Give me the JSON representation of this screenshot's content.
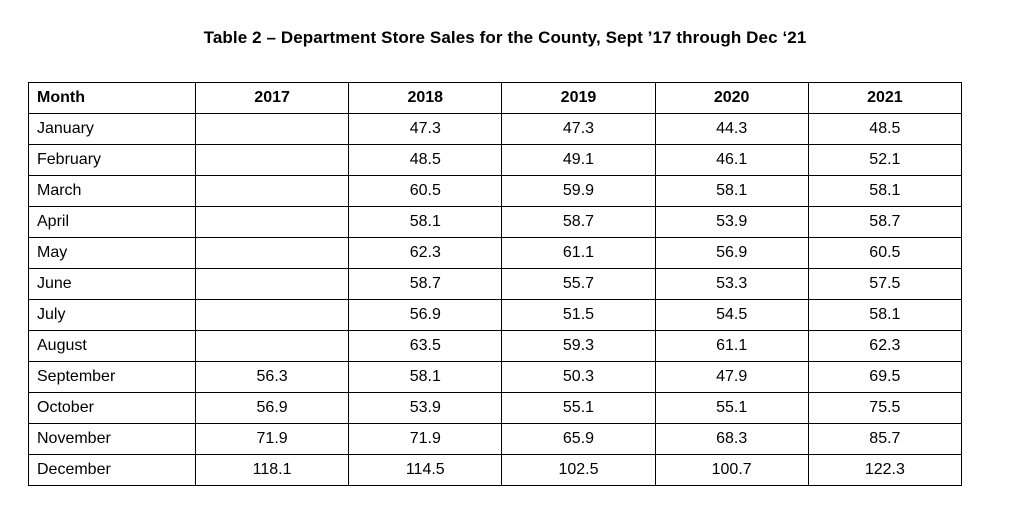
{
  "title": "Table 2 – Department Store Sales for the County, Sept ’17 through Dec ‘21",
  "chart_data": {
    "type": "table",
    "title": "Table 2 – Department Store Sales for the County, Sept ’17 through Dec ‘21",
    "columns": [
      "Month",
      "2017",
      "2018",
      "2019",
      "2020",
      "2021"
    ],
    "rows": [
      [
        "January",
        "",
        "47.3",
        "47.3",
        "44.3",
        "48.5"
      ],
      [
        "February",
        "",
        "48.5",
        "49.1",
        "46.1",
        "52.1"
      ],
      [
        "March",
        "",
        "60.5",
        "59.9",
        "58.1",
        "58.1"
      ],
      [
        "April",
        "",
        "58.1",
        "58.7",
        "53.9",
        "58.7"
      ],
      [
        "May",
        "",
        "62.3",
        "61.1",
        "56.9",
        "60.5"
      ],
      [
        "June",
        "",
        "58.7",
        "55.7",
        "53.3",
        "57.5"
      ],
      [
        "July",
        "",
        "56.9",
        "51.5",
        "54.5",
        "58.1"
      ],
      [
        "August",
        "",
        "63.5",
        "59.3",
        "61.1",
        "62.3"
      ],
      [
        "September",
        "56.3",
        "58.1",
        "50.3",
        "47.9",
        "69.5"
      ],
      [
        "October",
        "56.9",
        "53.9",
        "55.1",
        "55.1",
        "75.5"
      ],
      [
        "November",
        "71.9",
        "71.9",
        "65.9",
        "68.3",
        "85.7"
      ],
      [
        "December",
        "118.1",
        "114.5",
        "102.5",
        "100.7",
        "122.3"
      ]
    ]
  }
}
